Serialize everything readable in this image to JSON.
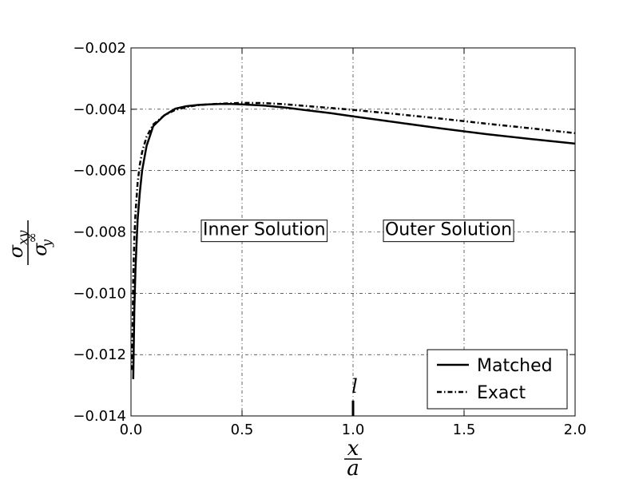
{
  "chart_data": {
    "type": "line",
    "title": "",
    "xlabel": {
      "numerator": "x",
      "denominator": "a"
    },
    "ylabel": {
      "numerator": "σ",
      "numerator_sub": "xy",
      "denominator": "σ",
      "denominator_sup": "∞",
      "denominator_sub": "y"
    },
    "xlim": [
      0.0,
      2.0
    ],
    "ylim": [
      -0.014,
      -0.002
    ],
    "xticks": [
      0.0,
      0.5,
      1.0,
      1.5,
      2.0
    ],
    "xtick_labels": [
      "0.0",
      "0.5",
      "1.0",
      "1.5",
      "2.0"
    ],
    "yticks": [
      -0.014,
      -0.012,
      -0.01,
      -0.008,
      -0.006,
      -0.004,
      -0.002
    ],
    "ytick_labels": [
      "−0.014",
      "−0.012",
      "−0.010",
      "−0.008",
      "−0.006",
      "−0.004",
      "−0.002"
    ],
    "grid": true,
    "legend_position": "bottom-right",
    "series": [
      {
        "name": "Matched",
        "style": "solid",
        "color": "#000000",
        "x": [
          0.01,
          0.015,
          0.02,
          0.03,
          0.04,
          0.05,
          0.07,
          0.1,
          0.15,
          0.2,
          0.25,
          0.3,
          0.35,
          0.4,
          0.45,
          0.5,
          0.6,
          0.7,
          0.8,
          0.9,
          1.0,
          1.2,
          1.4,
          1.6,
          1.8,
          2.0
        ],
        "y": [
          -0.0128,
          -0.0105,
          -0.0092,
          -0.0076,
          -0.0067,
          -0.006,
          -0.0052,
          -0.00455,
          -0.0042,
          -0.00398,
          -0.0039,
          -0.00386,
          -0.00384,
          -0.00383,
          -0.00383,
          -0.00384,
          -0.00388,
          -0.00395,
          -0.00404,
          -0.00413,
          -0.00423,
          -0.00443,
          -0.00463,
          -0.00481,
          -0.00497,
          -0.00512
        ]
      },
      {
        "name": "Exact",
        "style": "dash-dot",
        "color": "#000000",
        "x": [
          0.005,
          0.01,
          0.015,
          0.02,
          0.03,
          0.04,
          0.05,
          0.07,
          0.1,
          0.15,
          0.2,
          0.25,
          0.3,
          0.35,
          0.4,
          0.5,
          0.6,
          0.7,
          0.8,
          0.9,
          1.0,
          1.2,
          1.4,
          1.6,
          1.8,
          2.0
        ],
        "y": [
          -0.0125,
          -0.0095,
          -0.0082,
          -0.0074,
          -0.0064,
          -0.0058,
          -0.0054,
          -0.0049,
          -0.0045,
          -0.0042,
          -0.00402,
          -0.00393,
          -0.00387,
          -0.00384,
          -0.00382,
          -0.00379,
          -0.0038,
          -0.00384,
          -0.0039,
          -0.00396,
          -0.00402,
          -0.00416,
          -0.00431,
          -0.00447,
          -0.00462,
          -0.00478
        ]
      }
    ],
    "annotations": [
      {
        "text": "Inner Solution",
        "x": 0.6,
        "y": -0.0079
      },
      {
        "text": "Outer Solution",
        "x": 1.43,
        "y": -0.0079
      }
    ],
    "marker": {
      "label": "l",
      "x": 1.0,
      "y_from": -0.014,
      "y_to": -0.0135
    }
  }
}
